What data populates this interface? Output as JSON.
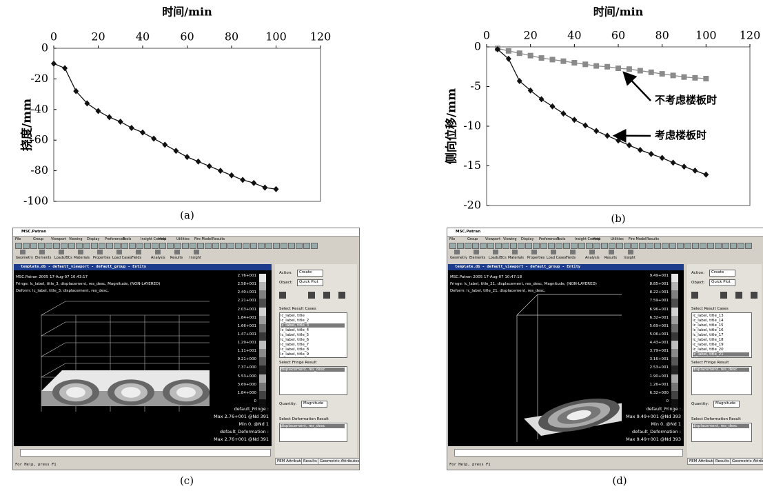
{
  "chart_data": [
    {
      "type": "line",
      "xlabel": "时间/min",
      "ylabel": "挠度/mm",
      "caption": "(a)",
      "x": [
        0,
        5,
        10,
        15,
        20,
        25,
        30,
        35,
        40,
        45,
        50,
        55,
        60,
        65,
        70,
        75,
        80,
        85,
        90,
        95,
        100
      ],
      "values": [
        -10,
        -13,
        -28,
        -36,
        -41,
        -45,
        -48,
        -52,
        -55,
        -59,
        -63,
        -67,
        -71,
        -74,
        -77,
        -80,
        -83,
        -86,
        -88,
        -91,
        -92
      ],
      "color": "#111111",
      "marker": "diamond",
      "xlim": [
        0,
        120
      ],
      "xticks": [
        0,
        20,
        40,
        60,
        80,
        100,
        120
      ],
      "ylim": [
        -100,
        0
      ],
      "yticks": [
        0,
        -20,
        -40,
        -60,
        -80,
        -100
      ]
    },
    {
      "type": "line",
      "xlabel": "时间/min",
      "ylabel": "侧向位移/mm",
      "caption": "(b)",
      "x": [
        5,
        10,
        15,
        20,
        25,
        30,
        35,
        40,
        45,
        50,
        55,
        60,
        65,
        70,
        75,
        80,
        85,
        90,
        95,
        100
      ],
      "series": [
        {
          "name": "不考虑楼板时",
          "color": "#8a8a8a",
          "marker": "square",
          "values": [
            -0.2,
            -0.5,
            -0.8,
            -1.1,
            -1.4,
            -1.6,
            -1.8,
            -2.0,
            -2.2,
            -2.4,
            -2.5,
            -2.7,
            -2.8,
            -3.0,
            -3.2,
            -3.4,
            -3.6,
            -3.8,
            -3.9,
            -4.0
          ]
        },
        {
          "name": "考虑楼板时",
          "color": "#111111",
          "marker": "diamond",
          "values": [
            -0.3,
            -1.5,
            -4.3,
            -5.5,
            -6.6,
            -7.5,
            -8.4,
            -9.2,
            -9.9,
            -10.6,
            -11.2,
            -11.8,
            -12.4,
            -13.0,
            -13.5,
            -14.0,
            -14.6,
            -15.1,
            -15.6,
            -16.1
          ]
        }
      ],
      "xlim": [
        0,
        120
      ],
      "xticks": [
        0,
        20,
        40,
        60,
        80,
        100,
        120
      ],
      "ylim": [
        -20,
        0
      ],
      "yticks": [
        0,
        -5,
        -10,
        -15,
        -20
      ]
    }
  ],
  "screenshots": [
    {
      "caption": "(c)",
      "window_title": "MSC.Patran",
      "menu": [
        "File",
        "Group",
        "Viewport",
        "Viewing",
        "Display",
        "Preferences",
        "Tools",
        "Insight Control",
        "Help",
        "Utilities",
        "Fire Model",
        "Results"
      ],
      "toolbar": [
        "Geometry",
        "Elements",
        "Loads/BCs",
        "Materials",
        "Properties",
        "Load Cases",
        "Fields",
        "Analysis",
        "Results",
        "Insight"
      ],
      "viewport_title": "template.db - default_viewport - default_group - Entity",
      "info": [
        "MSC.Patran 2005 17-Aug-07 10:43:17",
        "Fringe: lc_label, title_3, displacement, res_desc, Magnitude, (NON-LAYERED)",
        "Deform: lc_label, title_3, displacement, res_desc,"
      ],
      "legend": [
        "2.76+001",
        "2.58+001",
        "2.40+001",
        "2.21+001",
        "2.03+001",
        "1.84+001",
        "1.66+001",
        "1.47+001",
        "1.29+001",
        "1.11+001",
        "9.21+000",
        "7.37+000",
        "5.53+000",
        "3.69+000",
        "1.84+000",
        "0"
      ],
      "footer": [
        "default_Fringe :",
        "Max 2.76+001 @Nd 391",
        "Min 0. @Nd 1",
        "default_Deformation :",
        "Max 2.76+001 @Nd 391"
      ],
      "action_label": "Action:",
      "action": "Create",
      "object_label": "Object:",
      "object": "Quick Plot",
      "result_cases_label": "Select Result Cases",
      "result_cases": [
        "lc_label, title",
        "lc_label, title_2",
        "lc_label, title_3",
        "lc_label, title_4",
        "lc_label, title_5",
        "lc_label, title_6",
        "lc_label, title_7",
        "lc_label, title_8",
        "lc_label, title_9"
      ],
      "fringe_label": "Select Fringe Result",
      "fringe": "displacement, res_desc",
      "quantity_label": "Quantity:",
      "quantity": "Magnitude",
      "deformation_label": "Select Deformation Result",
      "deformation": "displacement, res_desc",
      "tabs": [
        "FEM Attributes",
        "Results",
        "Geometric Attributes"
      ],
      "status": "For Help, press F1"
    },
    {
      "caption": "(d)",
      "window_title": "MSC.Patran",
      "menu": [
        "File",
        "Group",
        "Viewport",
        "Viewing",
        "Display",
        "Preferences",
        "Tools",
        "Insight Control",
        "Help",
        "Utilities",
        "Fire Model",
        "Results"
      ],
      "toolbar": [
        "Geometry",
        "Elements",
        "Loads/BCs",
        "Materials",
        "Properties",
        "Load Cases",
        "Fields",
        "Analysis",
        "Results",
        "Insight"
      ],
      "viewport_title": "template.db - default_viewport - default_group - Entity",
      "info": [
        "MSC.Patran 2005 17-Aug-07 10:47:18",
        "Fringe: lc_label, title_21, displacement, res_desc, Magnitude, (NON-LAYERED)",
        "Deform: lc_label, title_21, displacement, res_desc,"
      ],
      "legend": [
        "9.49+001",
        "8.85+001",
        "8.22+001",
        "7.59+001",
        "6.96+001",
        "6.32+001",
        "5.69+001",
        "5.06+001",
        "4.43+001",
        "3.79+001",
        "3.16+001",
        "2.53+001",
        "1.90+001",
        "1.26+001",
        "6.32+000",
        "0"
      ],
      "footer": [
        "default_Fringe :",
        "Max 9.49+001 @Nd 393",
        "Min 0. @Nd 1",
        "default_Deformation :",
        "Max 9.49+001 @Nd 393"
      ],
      "action_label": "Action:",
      "action": "Create",
      "object_label": "Object:",
      "object": "Quick Plot",
      "result_cases_label": "Select Result Cases",
      "result_cases": [
        "lc_label, title_13",
        "lc_label, title_14",
        "lc_label, title_15",
        "lc_label, title_16",
        "lc_label, title_17",
        "lc_label, title_18",
        "lc_label, title_19",
        "lc_label, title_20",
        "lc_label, title_21"
      ],
      "fringe_label": "Select Fringe Result",
      "fringe": "displacement, res_desc",
      "quantity_label": "Quantity:",
      "quantity": "Magnitude",
      "deformation_label": "Select Deformation Result",
      "deformation": "displacement, res_desc",
      "tabs": [
        "FEM Attributes",
        "Results",
        "Geometric Attributes"
      ],
      "status": "For Help, press F1"
    }
  ]
}
